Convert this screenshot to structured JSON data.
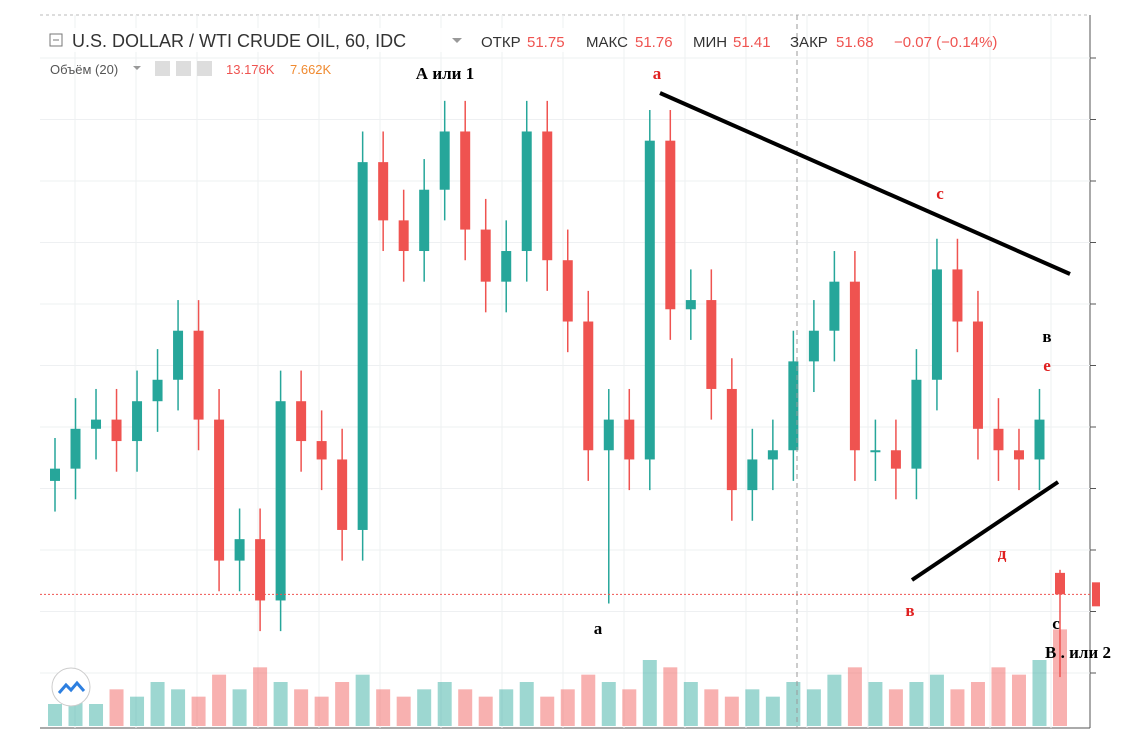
{
  "header": {
    "title": "U.S. DOLLAR / WTI CRUDE OIL, 60, IDC",
    "open_label": "ОТКР",
    "open": 51.75,
    "high_label": "МАКС",
    "high": 51.76,
    "low_label": "МИН",
    "low": 51.41,
    "close_label": "ЗАКР",
    "close": 51.68,
    "change": "−0.07 (−0.14%)",
    "volume_label": "Объём (20)",
    "volume": "13.176K",
    "volume_ma": "7.662K"
  },
  "chart_data": {
    "type": "candlestick",
    "ylim": [
      51.27,
      53.57
    ],
    "volume_lim": [
      0,
      15
    ],
    "up_color": "#26a69a",
    "down_color": "#ef5350",
    "open": [
      52.05,
      52.09,
      52.22,
      52.25,
      52.18,
      52.31,
      52.38,
      52.54,
      52.25,
      51.79,
      51.86,
      51.66,
      52.31,
      52.18,
      52.12,
      51.89,
      53.09,
      52.9,
      52.8,
      53.0,
      53.19,
      52.87,
      52.7,
      52.8,
      53.19,
      52.77,
      52.57,
      52.15,
      52.25,
      52.12,
      53.16,
      52.61,
      52.64,
      52.35,
      52.02,
      52.12,
      52.15,
      52.44,
      52.54,
      52.7,
      52.15,
      52.15,
      52.09,
      52.38,
      52.74,
      52.57,
      52.22,
      52.15,
      52.12,
      51.75
    ],
    "high": [
      52.19,
      52.32,
      52.35,
      52.35,
      52.41,
      52.48,
      52.64,
      52.64,
      52.35,
      51.96,
      51.96,
      52.41,
      52.41,
      52.28,
      52.22,
      53.19,
      53.19,
      53.0,
      53.1,
      53.29,
      53.29,
      52.97,
      52.9,
      53.29,
      53.29,
      52.87,
      52.67,
      52.35,
      52.35,
      53.26,
      53.26,
      52.74,
      52.74,
      52.45,
      52.22,
      52.25,
      52.54,
      52.64,
      52.8,
      52.8,
      52.25,
      52.25,
      52.48,
      52.84,
      52.84,
      52.67,
      52.32,
      52.22,
      52.35,
      51.76
    ],
    "low": [
      51.95,
      51.99,
      52.12,
      52.08,
      52.08,
      52.21,
      52.28,
      52.15,
      51.69,
      51.69,
      51.56,
      51.56,
      52.08,
      52.02,
      51.79,
      51.79,
      52.8,
      52.7,
      52.7,
      52.9,
      52.77,
      52.6,
      52.6,
      52.7,
      52.67,
      52.47,
      52.05,
      51.65,
      52.02,
      52.02,
      52.51,
      52.51,
      52.25,
      51.92,
      51.92,
      52.02,
      52.05,
      52.34,
      52.44,
      52.05,
      52.05,
      51.99,
      51.99,
      52.28,
      52.47,
      52.12,
      52.05,
      52.02,
      52.02,
      51.41
    ],
    "close": [
      52.09,
      52.22,
      52.25,
      52.18,
      52.31,
      52.38,
      52.54,
      52.25,
      51.79,
      51.86,
      51.66,
      52.31,
      52.18,
      52.12,
      51.89,
      53.09,
      52.9,
      52.8,
      53.0,
      53.19,
      52.87,
      52.7,
      52.8,
      53.19,
      52.77,
      52.57,
      52.15,
      52.25,
      52.12,
      53.16,
      52.61,
      52.64,
      52.35,
      52.02,
      52.12,
      52.15,
      52.44,
      52.54,
      52.7,
      52.15,
      52.15,
      52.09,
      52.38,
      52.74,
      52.57,
      52.22,
      52.15,
      52.12,
      52.25,
      51.68
    ],
    "volume": [
      3,
      4,
      3,
      5,
      4,
      6,
      5,
      4,
      7,
      5,
      8,
      6,
      5,
      4,
      6,
      7,
      5,
      4,
      5,
      6,
      5,
      4,
      5,
      6,
      4,
      5,
      7,
      6,
      5,
      9,
      8,
      6,
      5,
      4,
      5,
      4,
      6,
      5,
      7,
      8,
      6,
      5,
      6,
      7,
      5,
      6,
      8,
      7,
      9,
      13.176
    ],
    "annotations": [
      {
        "text": "А или 1",
        "color": "#000000"
      },
      {
        "text": "а",
        "color": "#e02020"
      },
      {
        "text": "с",
        "color": "#e02020"
      },
      {
        "text": "в",
        "color": "#000000"
      },
      {
        "text": "е",
        "color": "#e02020"
      },
      {
        "text": "д",
        "color": "#e02020"
      },
      {
        "text": "в",
        "color": "#e02020"
      },
      {
        "text": "а",
        "color": "#000000"
      },
      {
        "text": "с",
        "color": "#000000"
      },
      {
        "text": "В . или 2",
        "color": "#000000"
      }
    ]
  }
}
